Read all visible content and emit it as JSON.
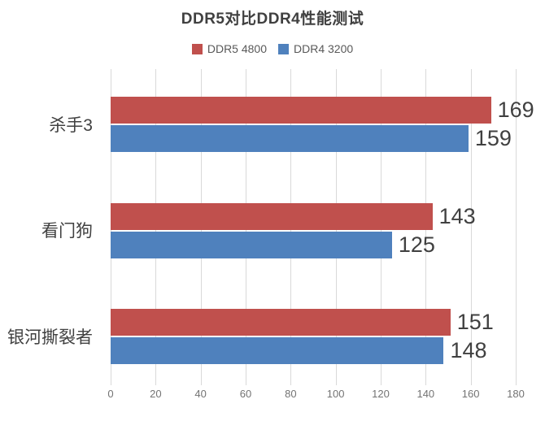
{
  "title": "DDR5对比DDR4性能测试",
  "legend": {
    "position": "top",
    "items": [
      {
        "label": "DDR5 4800",
        "color": "#c0504d"
      },
      {
        "label": "DDR4 3200",
        "color": "#4f81bd"
      }
    ]
  },
  "chart_data": {
    "type": "bar",
    "orientation": "horizontal",
    "title": "DDR5对比DDR4性能测试",
    "categories": [
      "杀手3",
      "看门狗",
      "银河撕裂者"
    ],
    "series": [
      {
        "name": "DDR5 4800",
        "color": "#c0504d",
        "values": [
          169,
          143,
          151
        ]
      },
      {
        "name": "DDR4 3200",
        "color": "#4f81bd",
        "values": [
          159,
          125,
          148
        ]
      }
    ],
    "xlim": [
      0,
      180
    ],
    "xticks": [
      0,
      20,
      40,
      60,
      80,
      100,
      120,
      140,
      160,
      180
    ],
    "grid": "vertical",
    "gridline_color": "#d9d9d9",
    "legend_position": "top",
    "value_labels": true,
    "xlabel": "",
    "ylabel": ""
  },
  "colors": {
    "background": "#ffffff",
    "text_dark": "#404040",
    "text_axis": "#737373",
    "gridline": "#d9d9d9"
  }
}
